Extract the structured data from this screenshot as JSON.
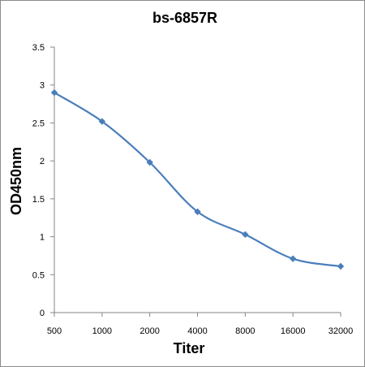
{
  "chart_data": {
    "type": "line",
    "title": "bs-6857R",
    "xlabel": "Titer",
    "ylabel": "OD450nm",
    "categories": [
      "500",
      "1000",
      "2000",
      "4000",
      "8000",
      "16000",
      "32000"
    ],
    "series": [
      {
        "values": [
          2.9,
          2.52,
          1.98,
          1.33,
          1.03,
          0.71,
          0.61
        ],
        "color": "#4a7ebb",
        "marker": "diamond",
        "smooth": true
      }
    ],
    "ylim": [
      0,
      3.5
    ],
    "yticks": [
      "0",
      "0.5",
      "1",
      "1.5",
      "2",
      "2.5",
      "3",
      "3.5"
    ],
    "grid": false,
    "legend": "none"
  }
}
